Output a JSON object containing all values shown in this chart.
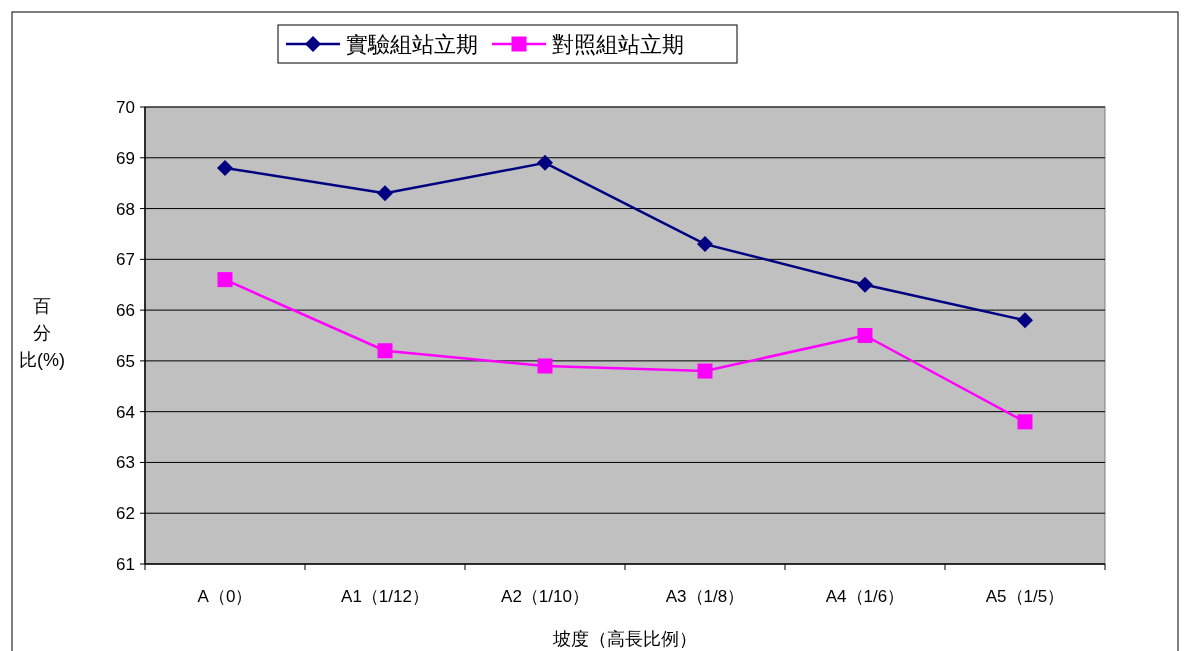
{
  "chart_data": {
    "type": "line",
    "xlabel": "坡度（高長比例）",
    "ylabel": "百分比(%)",
    "categories": [
      "A（0）",
      "A1（1/12）",
      "A2（1/10）",
      "A3（1/8）",
      "A4（1/6）",
      "A5（1/5）"
    ],
    "series": [
      {
        "name": "實驗組站立期",
        "color": "#000080",
        "marker": "diamond",
        "values": [
          68.8,
          68.3,
          68.9,
          67.3,
          66.5,
          65.8
        ]
      },
      {
        "name": "對照組站立期",
        "color": "#ff00ff",
        "marker": "square",
        "values": [
          66.6,
          65.2,
          64.9,
          64.8,
          65.5,
          63.8
        ]
      }
    ],
    "ylim": [
      61,
      70
    ],
    "yticks": [
      61,
      62,
      63,
      64,
      65,
      66,
      67,
      68,
      69,
      70
    ],
    "grid": "y",
    "legend": "top",
    "line_style": "solid"
  }
}
